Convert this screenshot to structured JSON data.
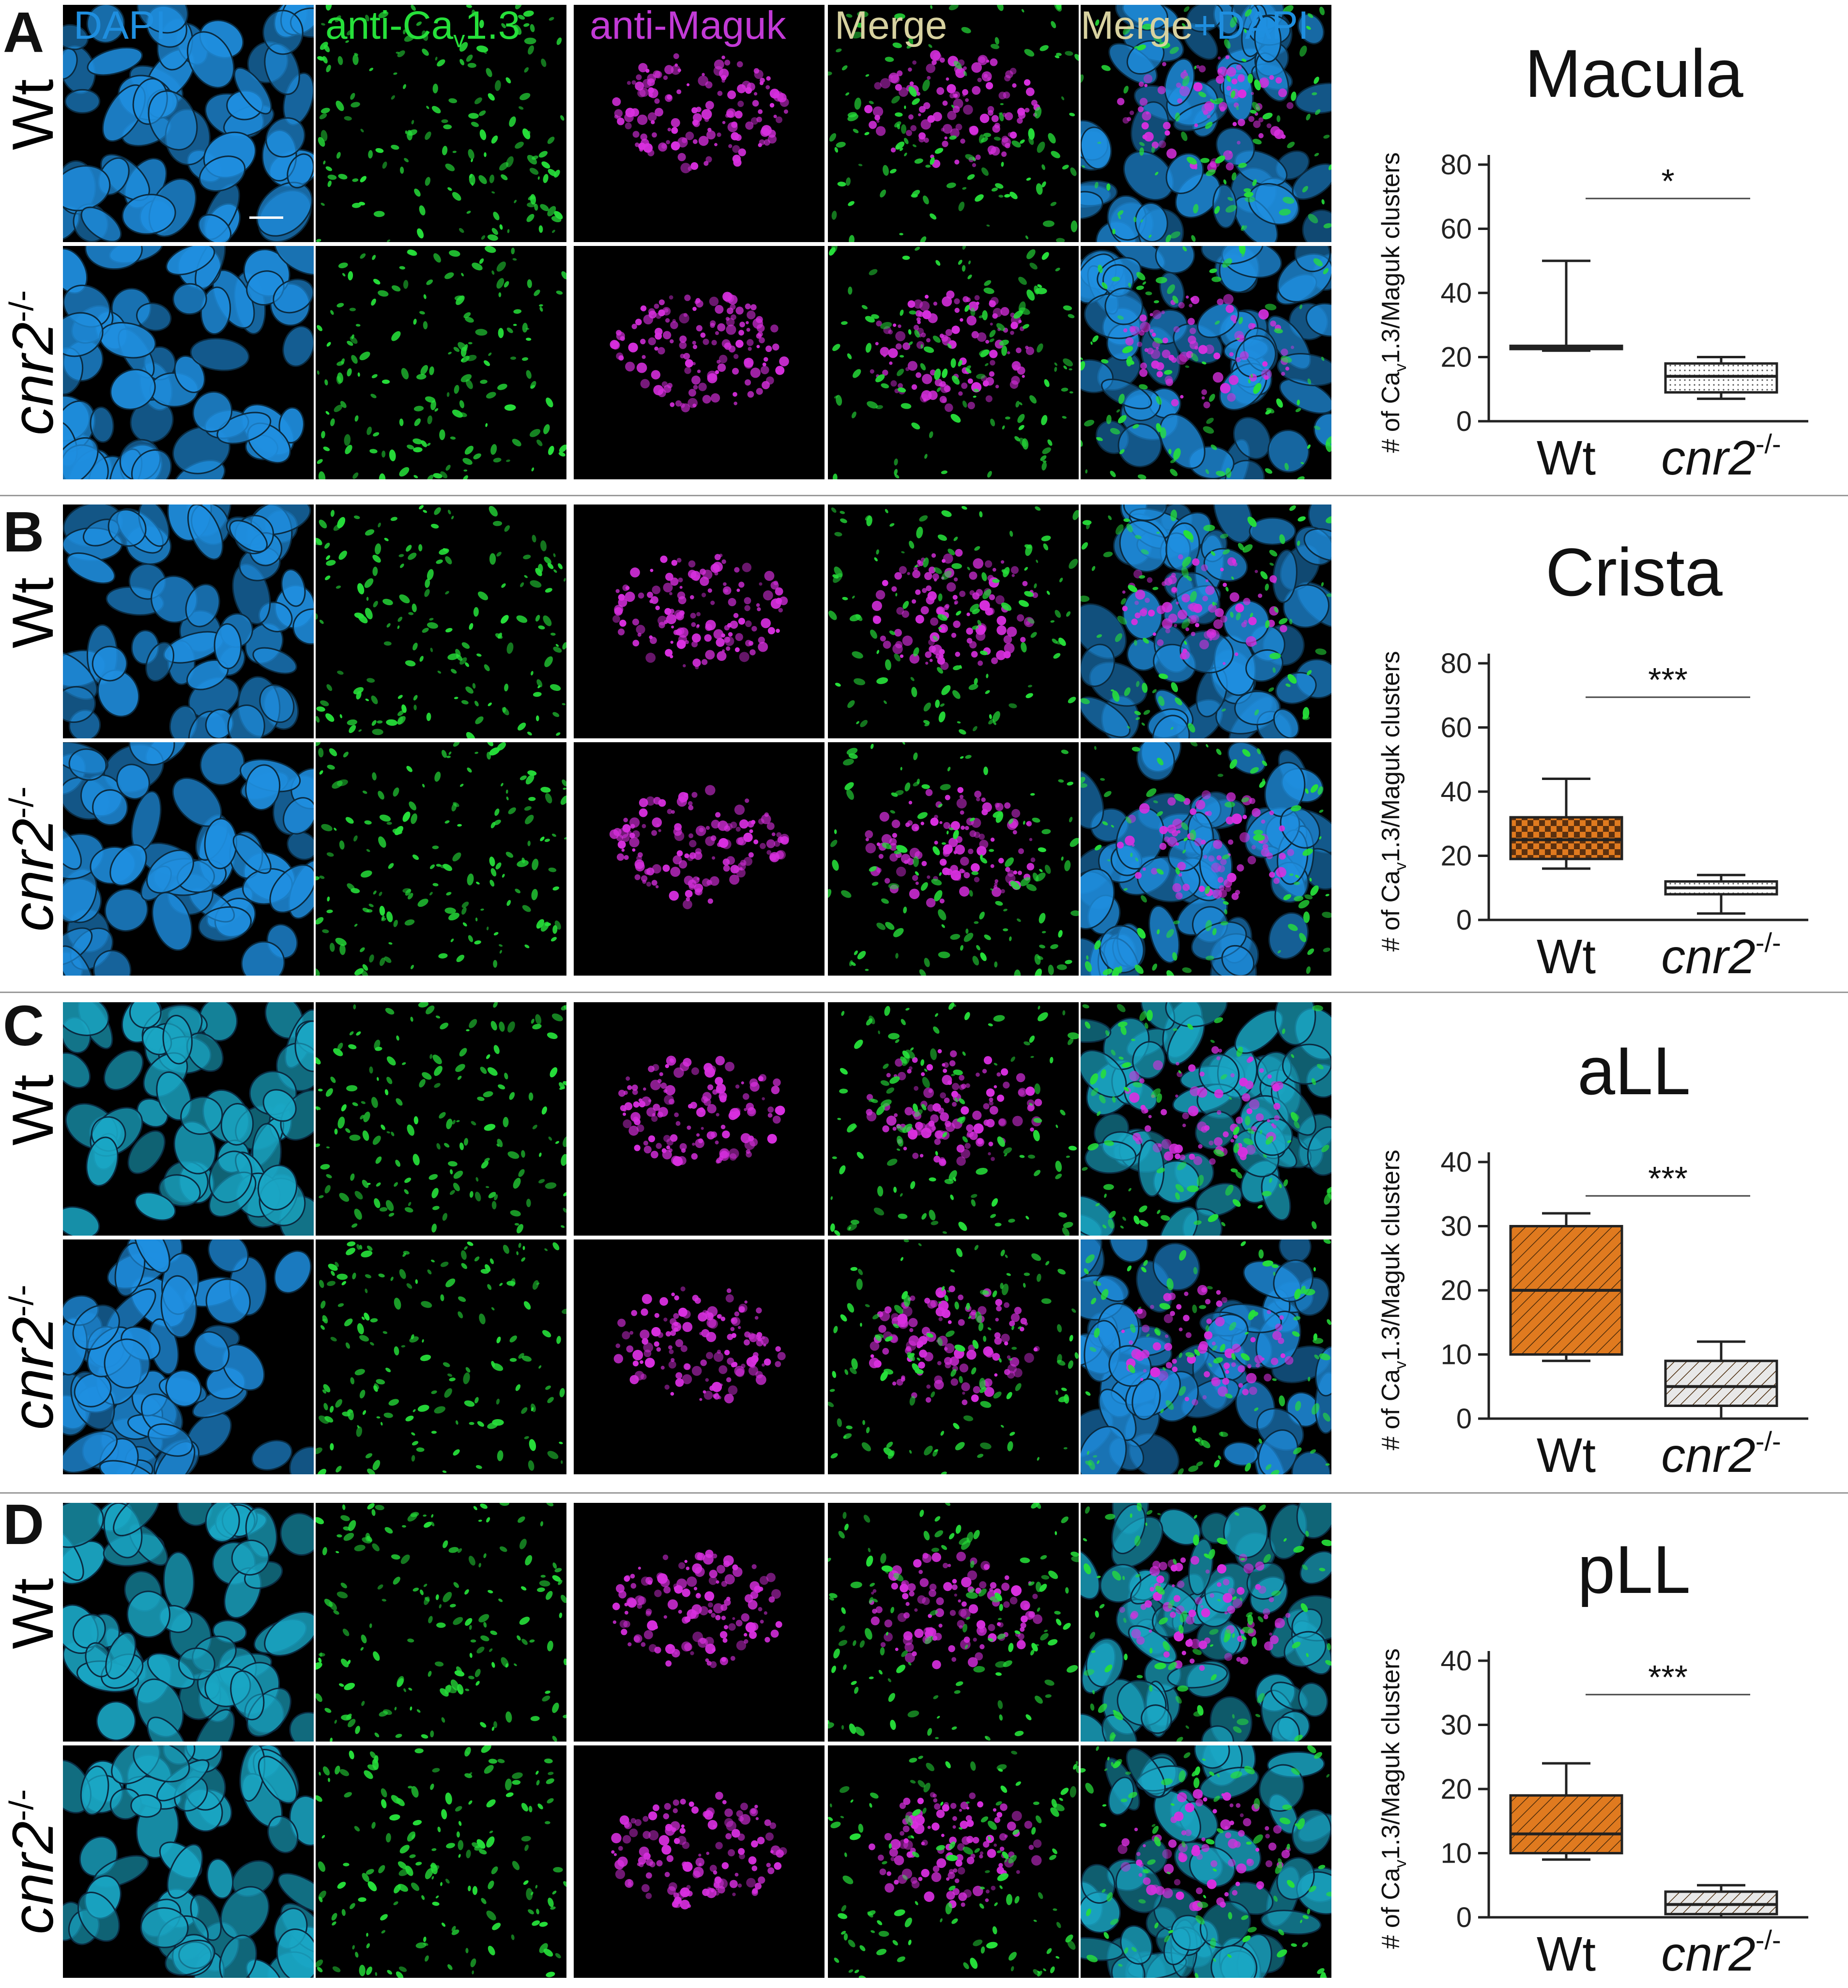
{
  "column_headers": [
    {
      "label": "DAPI",
      "color": "#1f8fe0"
    },
    {
      "label": "anti-Ca",
      "sub": "v",
      "label2": "1.3",
      "color": "#26e03a"
    },
    {
      "label": "anti-Maguk",
      "color": "#c23ad6"
    },
    {
      "label": "Merge",
      "color": "#d8d2a0"
    },
    {
      "label": "Merge",
      "label2": "+DAPI",
      "color": "#d8d2a0",
      "color2": "#1f8fe0"
    }
  ],
  "panels": [
    {
      "letter": "A",
      "row_labels": {
        "wt": "Wt",
        "mut": "cnr2",
        "mut_sup": "-/-"
      }
    },
    {
      "letter": "B",
      "row_labels": {
        "wt": "Wt",
        "mut": "cnr2",
        "mut_sup": "-/-"
      }
    },
    {
      "letter": "C",
      "row_labels": {
        "wt": "Wt",
        "mut": "cnr2",
        "mut_sup": "-/-"
      }
    },
    {
      "letter": "D",
      "row_labels": {
        "wt": "Wt",
        "mut": "cnr2",
        "mut_sup": "-/-"
      }
    }
  ],
  "colors": {
    "dapi_blue": "#1f8fe0",
    "dapi_teal": "#1aa6c4",
    "ca_green": "#26e03a",
    "maguk_magenta": "#d92fe0",
    "box_orange": "#e07a1f"
  },
  "chart_data": [
    {
      "type": "box",
      "title": "Macula",
      "ylabel": "# of Ca",
      "ylabel_sub": "v",
      "ylabel_rest": "1.3/Maguk clusters",
      "categories": [
        "Wt",
        "cnr2"
      ],
      "category_sup": [
        "",
        "-/-"
      ],
      "ylim": [
        0,
        80
      ],
      "yticks": [
        0,
        20,
        40,
        60,
        80
      ],
      "boxes": [
        {
          "min": 22,
          "q1": 22.5,
          "median": 23,
          "q3": 23.5,
          "max": 50,
          "fill": "#444444",
          "pattern": "solid"
        },
        {
          "min": 7,
          "q1": 9,
          "median": 14,
          "q3": 18,
          "max": 20,
          "fill": "#ffffff",
          "pattern": "dots"
        }
      ],
      "significance": "*"
    },
    {
      "type": "box",
      "title": "Crista",
      "ylabel": "# of Ca",
      "ylabel_sub": "v",
      "ylabel_rest": "1.3/Maguk clusters",
      "categories": [
        "Wt",
        "cnr2"
      ],
      "category_sup": [
        "",
        "-/-"
      ],
      "ylim": [
        0,
        80
      ],
      "yticks": [
        0,
        20,
        40,
        60,
        80
      ],
      "boxes": [
        {
          "min": 16,
          "q1": 19,
          "median": 25,
          "q3": 32,
          "max": 44,
          "fill": "#e07a1f",
          "pattern": "checker"
        },
        {
          "min": 2,
          "q1": 8,
          "median": 10,
          "q3": 12,
          "max": 14,
          "fill": "#ffffff",
          "pattern": "dots"
        }
      ],
      "significance": "***"
    },
    {
      "type": "box",
      "title": "aLL",
      "ylabel": "# of Ca",
      "ylabel_sub": "v",
      "ylabel_rest": "1.3/Maguk clusters",
      "categories": [
        "Wt",
        "cnr2"
      ],
      "category_sup": [
        "",
        "-/-"
      ],
      "ylim": [
        0,
        40
      ],
      "yticks": [
        0,
        10,
        20,
        30,
        40
      ],
      "boxes": [
        {
          "min": 9,
          "q1": 10,
          "median": 20,
          "q3": 30,
          "max": 32,
          "fill": "#e07a1f",
          "pattern": "diag"
        },
        {
          "min": 0,
          "q1": 2,
          "median": 5,
          "q3": 9,
          "max": 12,
          "fill": "#e8e8e8",
          "pattern": "diag"
        }
      ],
      "significance": "***"
    },
    {
      "type": "box",
      "title": "pLL",
      "ylabel": "# of Ca",
      "ylabel_sub": "v",
      "ylabel_rest": "1.3/Maguk clusters",
      "categories": [
        "Wt",
        "cnr2"
      ],
      "category_sup": [
        "",
        "-/-"
      ],
      "ylim": [
        0,
        40
      ],
      "yticks": [
        0,
        10,
        20,
        30,
        40
      ],
      "boxes": [
        {
          "min": 9,
          "q1": 10,
          "median": 13,
          "q3": 19,
          "max": 24,
          "fill": "#e07a1f",
          "pattern": "diag"
        },
        {
          "min": 0,
          "q1": 0.5,
          "median": 2,
          "q3": 4,
          "max": 5,
          "fill": "#e8e8e8",
          "pattern": "diag"
        }
      ],
      "significance": "***"
    }
  ]
}
